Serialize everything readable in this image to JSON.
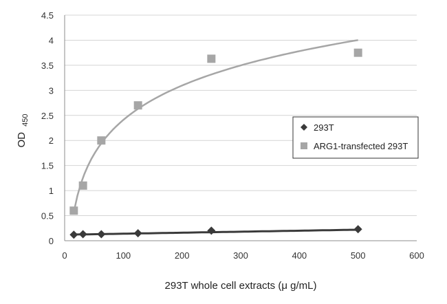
{
  "chart_data": {
    "type": "scatter",
    "xlabel": "293T whole cell extracts (μ g/mL)",
    "ylabel_main": "OD",
    "ylabel_sub": "450",
    "xlim": [
      0,
      600
    ],
    "ylim": [
      0,
      4.5
    ],
    "xticks": [
      "0",
      "100",
      "200",
      "300",
      "400",
      "500",
      "600"
    ],
    "yticks": [
      "0",
      "0.5",
      "1",
      "1.5",
      "2",
      "2.5",
      "3",
      "3.5",
      "4",
      "4.5"
    ],
    "grid": "horizontal",
    "legend_position": "right",
    "series": [
      {
        "name": "293T",
        "marker": "diamond",
        "color": "#3a3a3a",
        "fit_color": "#3a3a3a",
        "x": [
          15.6,
          31.25,
          62.5,
          125,
          250,
          500
        ],
        "y": [
          0.12,
          0.13,
          0.13,
          0.15,
          0.2,
          0.23
        ],
        "fit": {
          "type": "linear",
          "slope": 0.0002,
          "intercept": 0.12,
          "x_range": [
            15.6,
            500
          ]
        }
      },
      {
        "name": "ARG1-transfected 293T",
        "marker": "square",
        "color": "#a6a6a6",
        "fit_color": "#a6a6a6",
        "x": [
          15.6,
          31.25,
          62.5,
          125,
          250,
          500
        ],
        "y": [
          0.6,
          1.1,
          2.0,
          2.7,
          3.63,
          3.75
        ],
        "fit": {
          "type": "logarithmic",
          "a": 0.99,
          "b": -2.15,
          "x_range": [
            15.6,
            500
          ]
        }
      }
    ]
  }
}
